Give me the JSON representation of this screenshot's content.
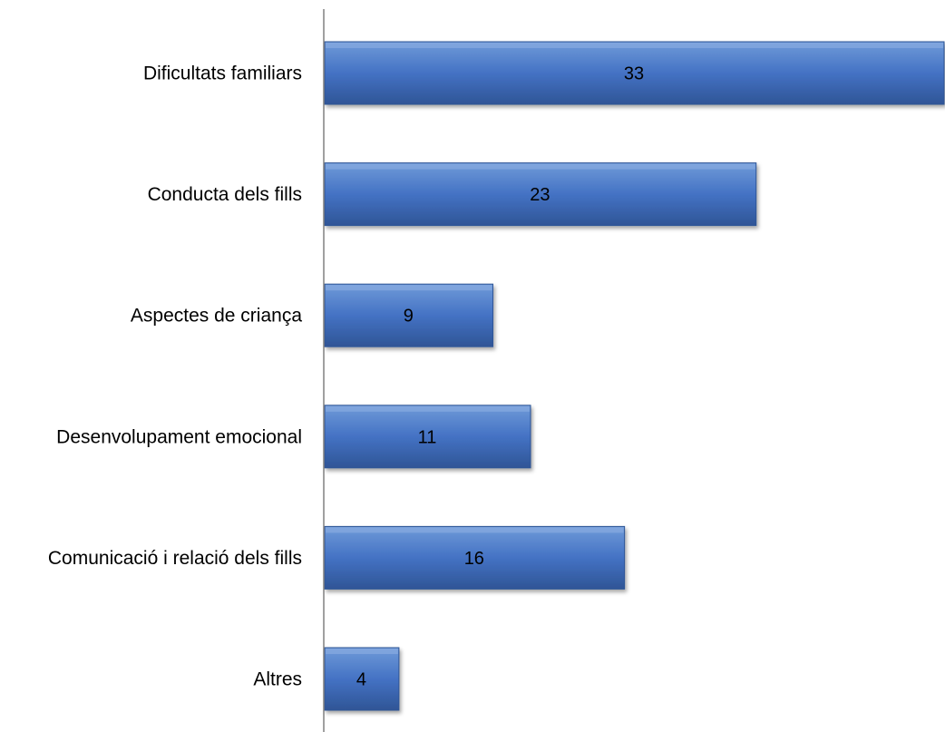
{
  "chart_data": {
    "type": "bar",
    "orientation": "horizontal",
    "categories": [
      "Dificultats familiars",
      "Conducta dels fills",
      "Aspectes de criança",
      "Desenvolupament emocional",
      "Comunicació i relació dels fills",
      "Altres"
    ],
    "values": [
      33,
      23,
      9,
      11,
      16,
      4
    ],
    "title": "",
    "xlabel": "",
    "ylabel": "",
    "xlim": [
      0,
      33
    ],
    "grid": false,
    "legend": "none",
    "data_labels": true,
    "colors": {
      "bar": "#4472c4",
      "bar_light": "#6f9ad8",
      "bar_dark": "#2f5596",
      "axis": "#808080"
    }
  }
}
